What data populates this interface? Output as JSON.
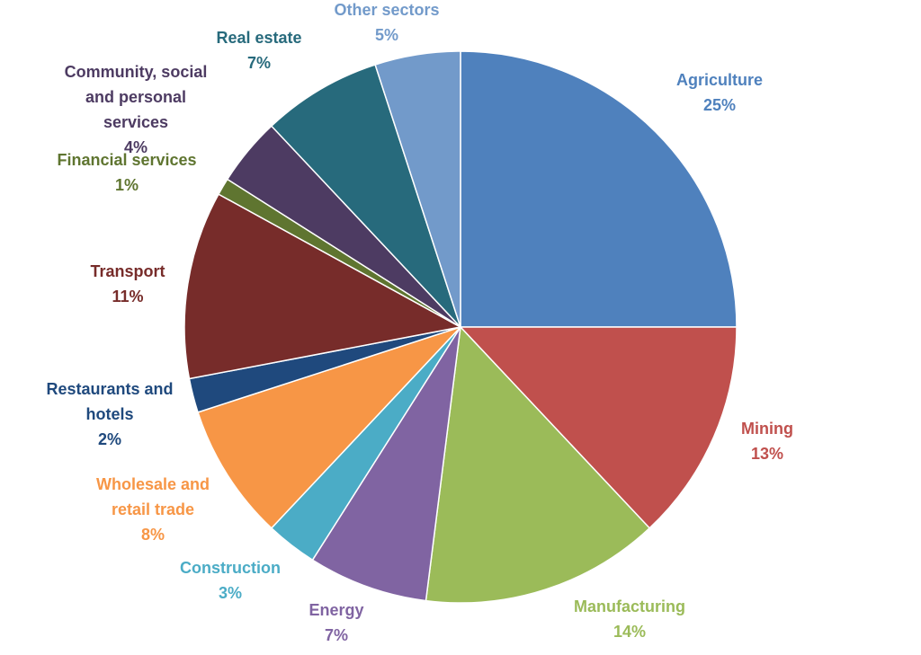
{
  "chart_data": {
    "type": "pie",
    "title": "",
    "legend": "none",
    "slices": [
      {
        "label": [
          "Agriculture"
        ],
        "value": 25,
        "value_label": "25%",
        "color": "#4f81bd"
      },
      {
        "label": [
          "Mining"
        ],
        "value": 13,
        "value_label": "13%",
        "color": "#c0504d"
      },
      {
        "label": [
          "Manufacturing"
        ],
        "value": 14,
        "value_label": "14%",
        "color": "#9bbb59"
      },
      {
        "label": [
          "Energy"
        ],
        "value": 7,
        "value_label": "7%",
        "color": "#8064a2"
      },
      {
        "label": [
          "Construction"
        ],
        "value": 3,
        "value_label": "3%",
        "color": "#4bacc6"
      },
      {
        "label": [
          "Wholesale and",
          "retail trade"
        ],
        "value": 8,
        "value_label": "8%",
        "color": "#f79646"
      },
      {
        "label": [
          "Restaurants and",
          "hotels"
        ],
        "value": 2,
        "value_label": "2%",
        "color": "#1f497d"
      },
      {
        "label": [
          "Transport"
        ],
        "value": 11,
        "value_label": "11%",
        "color": "#772c2a"
      },
      {
        "label": [
          "Financial services"
        ],
        "value": 1,
        "value_label": "1%",
        "color": "#5f7530"
      },
      {
        "label": [
          "Community, social",
          "and personal",
          "services"
        ],
        "value": 4,
        "value_label": "4%",
        "color": "#4d3b62"
      },
      {
        "label": [
          "Real estate"
        ],
        "value": 7,
        "value_label": "7%",
        "color": "#276a7c"
      },
      {
        "label": [
          "Other sectors"
        ],
        "value": 5,
        "value_label": "5%",
        "color": "#729aca"
      }
    ]
  }
}
